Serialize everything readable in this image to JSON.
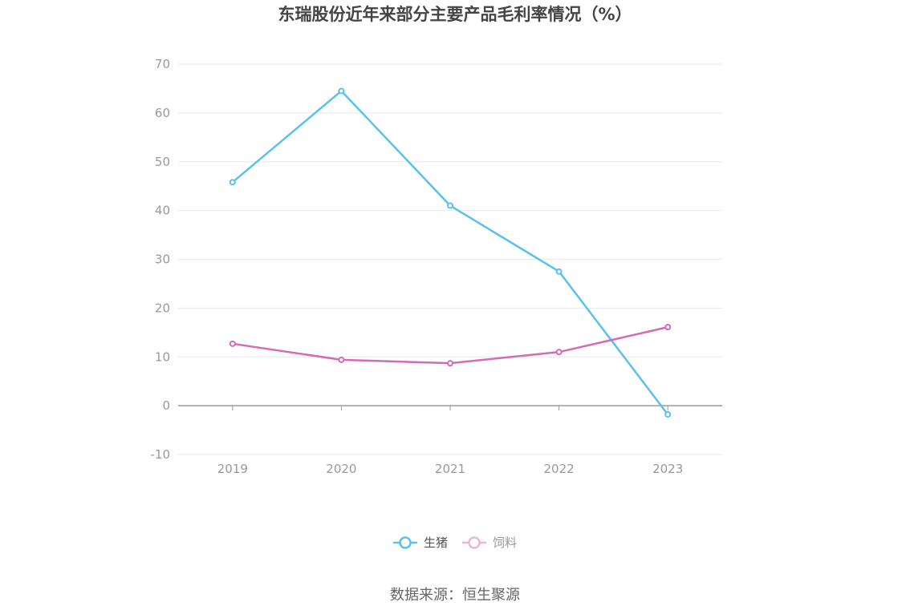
{
  "chart_data": {
    "type": "line",
    "title": "东瑞股份近年来部分主要产品毛利率情况（%）",
    "categories": [
      "2019",
      "2020",
      "2021",
      "2022",
      "2023"
    ],
    "series": [
      {
        "name": "生猪",
        "values": [
          45.8,
          64.5,
          41.0,
          27.5,
          -1.8
        ],
        "color": "#5bc0eb"
      },
      {
        "name": "饲料",
        "values": [
          12.7,
          9.4,
          8.7,
          11.0,
          16.1
        ],
        "color": "#d46bb5"
      }
    ],
    "ylim": [
      -10,
      70
    ],
    "yticks": [
      70,
      60,
      50,
      40,
      30,
      20,
      10,
      0,
      -10
    ],
    "grid": true,
    "legend_position": "bottom-center",
    "legend_selected": [
      true,
      false
    ],
    "legend_inactive_color": "#999999",
    "legend_active_color": "#555555",
    "legend_inactive_series_color": "#eeb4d4",
    "grid_color": "#e6e8f2",
    "axis_color": "#999999"
  },
  "source": "数据来源：恒生聚源"
}
